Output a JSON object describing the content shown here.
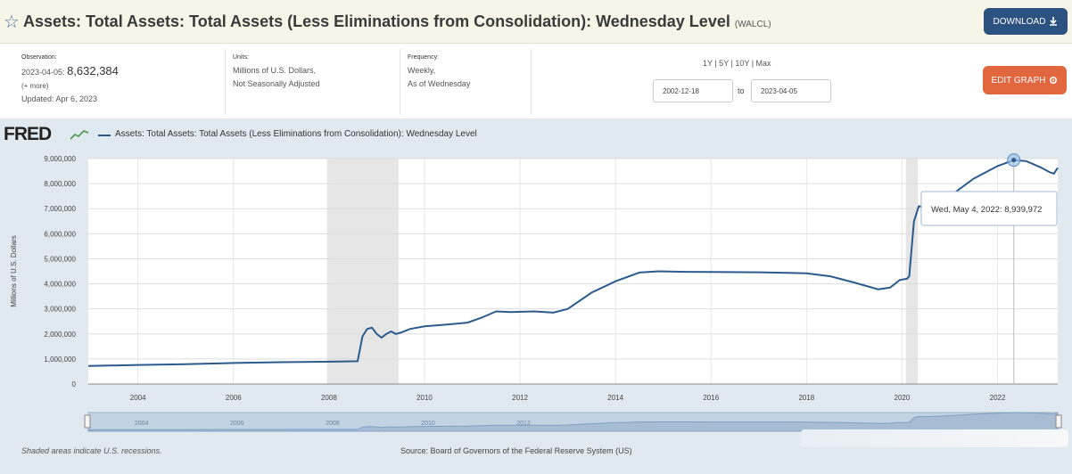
{
  "header": {
    "title": "Assets: Total Assets: Total Assets (Less Eliminations from Consolidation): Wednesday Level",
    "series_code": "(WALCL)",
    "download_label": "DOWNLOAD"
  },
  "meta": {
    "observation_label": "Observation:",
    "observation_date": "2023-04-05:",
    "observation_value": "8,632,384",
    "more_link": "(+ more)",
    "updated": "Updated: Apr 6, 2023",
    "units_label": "Units:",
    "units_line1": "Millions of U.S. Dollars,",
    "units_line2": "Not Seasonally Adjusted",
    "frequency_label": "Frequency:",
    "frequency_line1": "Weekly,",
    "frequency_line2": "As of Wednesday"
  },
  "controls": {
    "range_links": "1Y | 5Y | 10Y | Max",
    "start_date": "2002-12-18",
    "to_label": "to",
    "end_date": "2023-04-05",
    "edit_label": "EDIT GRAPH"
  },
  "brand": {
    "logo": "FRED"
  },
  "colors": {
    "line": "#2b5a8c",
    "recession": "#e6e6e6",
    "accent_download": "#2c5282",
    "accent_edit": "#e2673f"
  },
  "tooltip": {
    "text": "Wed, May 4, 2022: 8,939,972"
  },
  "footer": {
    "note": "Shaded areas indicate U.S. recessions.",
    "source": "Source: Board of Governors of the Federal Reserve System (US)"
  },
  "chart_data": {
    "type": "line",
    "title": "",
    "legend": "Assets: Total Assets: Total Assets (Less Eliminations from Consolidation): Wednesday Level",
    "xlabel": "",
    "ylabel": "Millions of U.S. Dollars",
    "xlim": [
      2002.96,
      2023.26
    ],
    "ylim": [
      0,
      9000000
    ],
    "x_ticks": [
      2004,
      2006,
      2008,
      2010,
      2012,
      2014,
      2016,
      2018,
      2020,
      2022
    ],
    "y_ticks": [
      "0",
      "1,000,000",
      "2,000,000",
      "3,000,000",
      "4,000,000",
      "5,000,000",
      "6,000,000",
      "7,000,000",
      "8,000,000",
      "9,000,000"
    ],
    "grid": true,
    "recessions": [
      [
        2007.96,
        2009.46
      ],
      [
        2020.08,
        2020.33
      ]
    ],
    "highlight": {
      "x": 2022.34,
      "y": 8939972
    },
    "series": [
      {
        "x": [
          2002.96,
          2004,
          2005,
          2006,
          2007,
          2007.9,
          2008.6,
          2008.7,
          2008.8,
          2008.9,
          2009.0,
          2009.1,
          2009.2,
          2009.3,
          2009.4,
          2009.5,
          2009.7,
          2010.0,
          2010.5,
          2010.9,
          2011.2,
          2011.5,
          2011.8,
          2012.3,
          2012.7,
          2013.0,
          2013.5,
          2014.0,
          2014.5,
          2014.9,
          2015.5,
          2016,
          2017,
          2018,
          2018.5,
          2019.0,
          2019.5,
          2019.75,
          2019.95,
          2020.1,
          2020.15,
          2020.25,
          2020.35,
          2020.5,
          2020.8,
          2021.0,
          2021.5,
          2022.0,
          2022.34,
          2022.6,
          2022.9,
          2023.1,
          2023.18,
          2023.26
        ],
        "y": [
          720000,
          760000,
          790000,
          840000,
          870000,
          890000,
          910000,
          1900000,
          2200000,
          2250000,
          2000000,
          1850000,
          2000000,
          2100000,
          2000000,
          2050000,
          2200000,
          2300000,
          2380000,
          2450000,
          2650000,
          2900000,
          2870000,
          2900000,
          2850000,
          3000000,
          3650000,
          4100000,
          4450000,
          4500000,
          4480000,
          4470000,
          4460000,
          4420000,
          4300000,
          4050000,
          3780000,
          3850000,
          4150000,
          4200000,
          4300000,
          6500000,
          7100000,
          7050000,
          7300000,
          7500000,
          8200000,
          8700000,
          8939972,
          8900000,
          8650000,
          8450000,
          8400000,
          8632384
        ]
      }
    ]
  }
}
